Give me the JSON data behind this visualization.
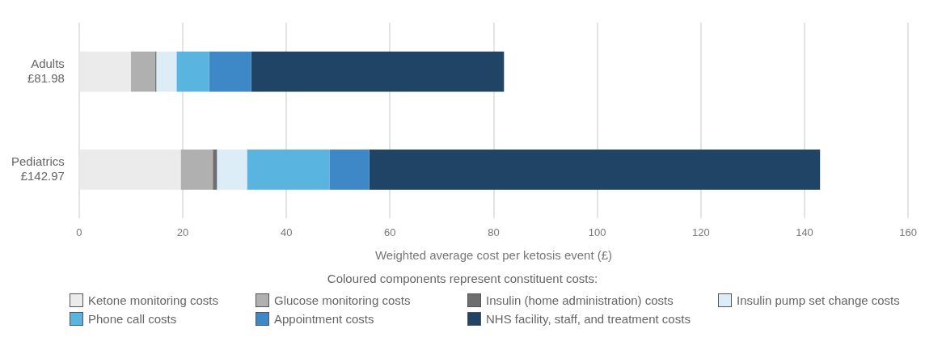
{
  "chart_data": {
    "type": "bar",
    "orientation": "horizontal",
    "stacked": true,
    "categories": [
      "Adults\n£81.98",
      "Pediatrics\n£142.97"
    ],
    "xlabel": "Weighted average cost per ketosis event (£)",
    "legend_title": "Coloured components represent constituent costs:",
    "xlim": [
      0,
      160
    ],
    "xticks": [
      0,
      20,
      40,
      60,
      80,
      100,
      120,
      140,
      160
    ],
    "grid": "x",
    "legend": "bottom",
    "series": [
      {
        "name": "Ketone monitoring costs",
        "color": "#ebebeb",
        "values": [
          10.0,
          19.6
        ]
      },
      {
        "name": "Glucose monitoring costs",
        "color": "#b0b0b0",
        "values": [
          4.7,
          6.2
        ]
      },
      {
        "name": "Insulin (home administration) costs",
        "color": "#6e6e6e",
        "values": [
          0.2,
          0.8
        ]
      },
      {
        "name": "Insulin pump set change costs",
        "color": "#dcedf8",
        "values": [
          3.9,
          5.8
        ]
      },
      {
        "name": "Phone call costs",
        "color": "#5ab4e0",
        "values": [
          6.3,
          15.9
        ]
      },
      {
        "name": "Appointment costs",
        "color": "#3f88c8",
        "values": [
          8.1,
          7.7
        ]
      },
      {
        "name": "NHS facility, staff, and treatment costs",
        "color": "#1f4466",
        "values": [
          48.8,
          87.0
        ]
      }
    ]
  }
}
